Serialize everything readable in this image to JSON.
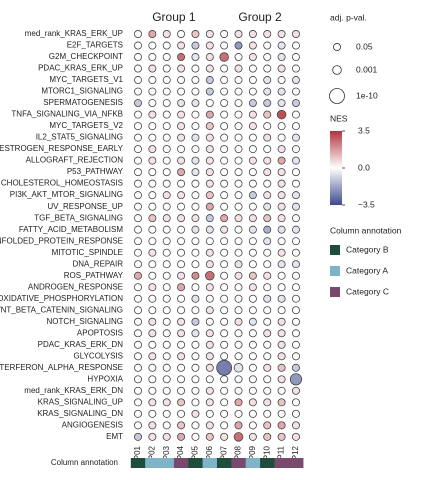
{
  "chart_data": {
    "type": "dotplot",
    "columns": [
      "P01",
      "P02",
      "P03",
      "P04",
      "P05",
      "P06",
      "P07",
      "P08",
      "P09",
      "P10",
      "P11",
      "P12"
    ],
    "groups": [
      {
        "name": "Group 1",
        "columns": 6
      },
      {
        "name": "Group 2",
        "columns": 6
      }
    ],
    "color_low": "#3e4a8e",
    "color_mid": "#ffffff",
    "color_high": "#b2343f",
    "clim": [
      -3.5,
      3.5
    ],
    "rows": [
      {
        "name": "med_rank_KRAS_ERK_UP",
        "nes": [
          0,
          1.5,
          0.5,
          0,
          1,
          0.5,
          0,
          0.5,
          0.5,
          0.5,
          0.5,
          0.5
        ],
        "padj": [
          0.05,
          0.05,
          0.05,
          0.05,
          0.05,
          0.05,
          0.05,
          0.05,
          0.05,
          0.05,
          0.05,
          0.05
        ]
      },
      {
        "name": "E2F_TARGETS",
        "nes": [
          0,
          0,
          0,
          0.5,
          -1,
          0.5,
          0,
          -2,
          0.5,
          0,
          -0.5,
          0
        ],
        "padj": [
          0.05,
          0.05,
          0.05,
          0.05,
          0.05,
          0.05,
          0.05,
          0.05,
          0.05,
          0.05,
          0.05,
          0.05
        ]
      },
      {
        "name": "G2M_CHECKPOINT",
        "nes": [
          0,
          0,
          0,
          2.5,
          -0.5,
          0.5,
          2.5,
          0,
          0.5,
          0,
          -0.5,
          0
        ],
        "padj": [
          0.05,
          0.05,
          0.05,
          0.05,
          0.05,
          0.05,
          0.001,
          0.05,
          0.05,
          0.05,
          0.05,
          0.05
        ]
      },
      {
        "name": "PDAC_KRAS_ERK_UP",
        "nes": [
          0,
          0.5,
          0,
          0.5,
          0,
          0.5,
          0,
          0.5,
          0,
          0,
          0.5,
          0
        ],
        "padj": [
          0.05,
          0.05,
          0.05,
          0.05,
          0.05,
          0.05,
          0.05,
          0.05,
          0.05,
          0.05,
          0.05,
          0.05
        ]
      },
      {
        "name": "MYC_TARGETS_V1",
        "nes": [
          0,
          0,
          0,
          0,
          0,
          -1,
          0,
          0,
          0,
          -0.5,
          0,
          -0.5
        ],
        "padj": [
          0.05,
          0.05,
          0.05,
          0.05,
          0.05,
          0.05,
          0.05,
          0.05,
          0.05,
          0.05,
          0.05,
          0.05
        ]
      },
      {
        "name": "MTORC1_SIGNALING",
        "nes": [
          0,
          0,
          0,
          0,
          0,
          -1,
          0,
          0,
          0,
          -0.5,
          -0.5,
          0
        ],
        "padj": [
          0.05,
          0.05,
          0.05,
          0.05,
          0.05,
          0.05,
          0.05,
          0.05,
          0.05,
          0.05,
          0.05,
          0.05
        ]
      },
      {
        "name": "SPERMATOGENESIS",
        "nes": [
          -1,
          0,
          0,
          -0.5,
          -0.5,
          0,
          0,
          0,
          -1,
          -1,
          -0.5,
          -1
        ],
        "padj": [
          0.05,
          0.05,
          0.05,
          0.05,
          0.05,
          0.05,
          0.05,
          0.05,
          0.05,
          0.05,
          0.05,
          0.05
        ]
      },
      {
        "name": "TNFA_SIGNALING_VIA_NFKB",
        "nes": [
          0,
          0.5,
          0,
          0.5,
          0,
          1.5,
          0,
          0,
          0.5,
          1,
          3,
          0
        ],
        "padj": [
          0.05,
          0.05,
          0.05,
          0.05,
          0.05,
          0.05,
          0.05,
          0.05,
          0.05,
          0.05,
          0.001,
          0.05
        ]
      },
      {
        "name": "MYC_TARGETS_V2",
        "nes": [
          0,
          0,
          0,
          0.5,
          0,
          1,
          0,
          0,
          0.5,
          0,
          0,
          0
        ],
        "padj": [
          0.05,
          0.05,
          0.05,
          0.05,
          0.05,
          0.05,
          0.05,
          0.05,
          0.05,
          0.05,
          0.05,
          0.05
        ]
      },
      {
        "name": "IL2_STAT5_SIGNALING",
        "nes": [
          0,
          0,
          0,
          0.5,
          -0.5,
          0.5,
          0,
          0,
          0,
          0.5,
          0,
          -0.5
        ],
        "padj": [
          0.05,
          0.05,
          0.05,
          0.05,
          0.05,
          0.05,
          0.05,
          0.05,
          0.05,
          0.05,
          0.05,
          0.05
        ]
      },
      {
        "name": "ESTROGEN_RESPONSE_EARLY",
        "nes": [
          0,
          0.5,
          0,
          0,
          0,
          0.5,
          0,
          0,
          0,
          0,
          0.5,
          0
        ],
        "padj": [
          0.05,
          0.05,
          0.05,
          0.05,
          0.05,
          0.05,
          0.05,
          0.05,
          0.05,
          0.05,
          0.05,
          0.05
        ]
      },
      {
        "name": "ALLOGRAFT_REJECTION",
        "nes": [
          0,
          0.5,
          0,
          0.5,
          -0.5,
          0.5,
          0,
          0,
          0.5,
          0.5,
          1.5,
          -0.5
        ],
        "padj": [
          0.05,
          0.05,
          0.05,
          0.05,
          0.05,
          0.05,
          0.05,
          0.05,
          0.05,
          0.05,
          0.05,
          0.05
        ]
      },
      {
        "name": "P53_PATHWAY",
        "nes": [
          0,
          0,
          0,
          1.5,
          -0.5,
          0.5,
          0,
          0,
          0,
          0.5,
          0.5,
          0
        ],
        "padj": [
          0.05,
          0.05,
          0.05,
          0.05,
          0.05,
          0.05,
          0.05,
          0.05,
          0.05,
          0.05,
          0.05,
          0.05
        ]
      },
      {
        "name": "CHOLESTEROL_HOMEOSTASIS",
        "nes": [
          0,
          0,
          0,
          0,
          0,
          0.5,
          0,
          0,
          0,
          0,
          0.5,
          0
        ],
        "padj": [
          0.05,
          0.05,
          0.05,
          0.05,
          0.05,
          0.05,
          0.05,
          0.05,
          0.05,
          0.05,
          0.05,
          0.05
        ]
      },
      {
        "name": "PI3K_AKT_MTOR_SIGNALING",
        "nes": [
          0,
          0,
          0.5,
          0.5,
          0,
          1,
          0,
          0,
          -1,
          0.5,
          0.5,
          -0.5
        ],
        "padj": [
          0.05,
          0.05,
          0.05,
          0.05,
          0.05,
          0.05,
          0.05,
          0.05,
          0.05,
          0.05,
          0.05,
          0.05
        ]
      },
      {
        "name": "UV_RESPONSE_UP",
        "nes": [
          0,
          0,
          0,
          0,
          0,
          1.5,
          0,
          0,
          0,
          -0.5,
          0.5,
          -0.5
        ],
        "padj": [
          0.05,
          0.05,
          0.05,
          0.05,
          0.05,
          0.05,
          0.05,
          0.05,
          0.05,
          0.05,
          0.05,
          0.05
        ]
      },
      {
        "name": "TGF_BETA_SIGNALING",
        "nes": [
          0,
          1,
          0.5,
          0.5,
          0.5,
          -1,
          1.5,
          0.5,
          0.5,
          1,
          0.5,
          0
        ],
        "padj": [
          0.05,
          0.05,
          0.05,
          0.05,
          0.05,
          0.05,
          0.05,
          0.05,
          0.05,
          0.05,
          0.05,
          0.05
        ]
      },
      {
        "name": "FATTY_ACID_METABOLISM",
        "nes": [
          0,
          0,
          0,
          0,
          -0.5,
          -0.5,
          0.5,
          0,
          -0.5,
          -1.5,
          -0.5,
          -0.5
        ],
        "padj": [
          0.05,
          0.05,
          0.05,
          0.05,
          0.05,
          0.05,
          0.05,
          0.05,
          0.05,
          0.05,
          0.05,
          0.05
        ]
      },
      {
        "name": "UNFOLDED_PROTEIN_RESPONSE",
        "nes": [
          0,
          0,
          0,
          0,
          0,
          0,
          0,
          0,
          0,
          -0.5,
          0,
          0
        ],
        "padj": [
          0.05,
          0.05,
          0.05,
          0.05,
          0.05,
          0.05,
          0.05,
          0.05,
          0.05,
          0.05,
          0.05,
          0.05
        ]
      },
      {
        "name": "MITOTIC_SPINDLE",
        "nes": [
          0,
          0.5,
          0,
          0,
          0,
          0.5,
          0,
          0,
          0,
          0,
          0.5,
          0
        ],
        "padj": [
          0.05,
          0.05,
          0.05,
          0.05,
          0.05,
          0.05,
          0.05,
          0.05,
          0.05,
          0.05,
          0.05,
          0.05
        ]
      },
      {
        "name": "DNA_REPAIR",
        "nes": [
          0,
          0,
          0,
          0,
          0,
          0.5,
          0,
          -0.5,
          0,
          0,
          -0.5,
          -0.5
        ],
        "padj": [
          0.05,
          0.05,
          0.05,
          0.05,
          0.05,
          0.05,
          0.05,
          0.05,
          0.05,
          0.05,
          0.05,
          0.05
        ]
      },
      {
        "name": "ROS_PATHWAY",
        "nes": [
          1.5,
          0,
          0,
          0.5,
          2,
          2.5,
          0,
          0.5,
          1,
          0.5,
          0,
          0
        ],
        "padj": [
          0.05,
          0.05,
          0.05,
          0.05,
          0.05,
          0.001,
          0.05,
          0.05,
          0.05,
          0.05,
          0.05,
          0.05
        ]
      },
      {
        "name": "ANDROGEN_RESPONSE",
        "nes": [
          0,
          0.5,
          0,
          1.5,
          0,
          0.5,
          0,
          0,
          0.5,
          0,
          0,
          0
        ],
        "padj": [
          0.05,
          0.05,
          0.05,
          0.05,
          0.05,
          0.05,
          0.05,
          0.05,
          0.05,
          0.05,
          0.05,
          0.05
        ]
      },
      {
        "name": "OXIDATIVE_PHOSPHORYLATION",
        "nes": [
          0,
          0,
          0,
          0,
          -0.5,
          0,
          0,
          0,
          0,
          -0.5,
          -0.5,
          0
        ],
        "padj": [
          0.05,
          0.05,
          0.05,
          0.05,
          0.05,
          0.05,
          0.05,
          0.05,
          0.05,
          0.05,
          0.05,
          0.05
        ]
      },
      {
        "name": "WNT_BETA_CATENIN_SIGNALING",
        "nes": [
          0,
          0,
          0,
          0,
          0,
          0.5,
          0,
          0,
          0,
          0,
          0,
          0
        ],
        "padj": [
          0.05,
          0.05,
          0.05,
          0.05,
          0.05,
          0.05,
          0.05,
          0.05,
          0.05,
          0.05,
          0.05,
          0.05
        ]
      },
      {
        "name": "NOTCH_SIGNALING",
        "nes": [
          0,
          0.5,
          0,
          0.5,
          -1,
          0,
          0,
          0.5,
          -0.5,
          0,
          0.5,
          0
        ],
        "padj": [
          0.05,
          0.05,
          0.05,
          0.05,
          0.05,
          0.05,
          0.05,
          0.05,
          0.05,
          0.05,
          0.05,
          0.05
        ]
      },
      {
        "name": "APOPTOSIS",
        "nes": [
          0,
          0.5,
          0,
          0.5,
          -0.5,
          0.5,
          0,
          0,
          0,
          0.5,
          0.5,
          0
        ],
        "padj": [
          0.05,
          0.05,
          0.05,
          0.05,
          0.05,
          0.05,
          0.05,
          0.05,
          0.05,
          0.05,
          0.05,
          0.05
        ]
      },
      {
        "name": "PDAC_KRAS_ERK_DN",
        "nes": [
          0,
          0,
          0,
          0,
          0,
          0.5,
          0,
          0,
          0,
          0,
          0.5,
          0
        ],
        "padj": [
          0.05,
          0.05,
          0.05,
          0.05,
          0.05,
          0.05,
          0.05,
          0.05,
          0.05,
          0.05,
          0.05,
          0.05
        ]
      },
      {
        "name": "GLYCOLYSIS",
        "nes": [
          0,
          0.5,
          0,
          0.5,
          0,
          0.5,
          0,
          0,
          0,
          0,
          0.5,
          0
        ],
        "padj": [
          0.05,
          0.05,
          0.05,
          0.05,
          0.05,
          0.05,
          0.05,
          0.05,
          0.05,
          0.05,
          0.05,
          0.05
        ]
      },
      {
        "name": "INTERFERON_ALPHA_RESPONSE",
        "nes": [
          0,
          0,
          0,
          0,
          0,
          0.5,
          -2.5,
          -0.5,
          0,
          0.5,
          1,
          -1
        ],
        "padj": [
          0.05,
          0.05,
          0.05,
          0.05,
          0.05,
          0.05,
          1e-10,
          0.001,
          0.05,
          0.05,
          0.05,
          0.05
        ]
      },
      {
        "name": "HYPOXIA",
        "nes": [
          0,
          0,
          0,
          0,
          0,
          0,
          0,
          0,
          0,
          0,
          0.5,
          -2
        ],
        "padj": [
          0.05,
          0.05,
          0.05,
          0.05,
          0.05,
          0.05,
          0.05,
          0.05,
          0.05,
          0.05,
          0.05,
          1e-06
        ]
      },
      {
        "name": "med_rank_KRAS_ERK_DN",
        "nes": [
          0,
          0,
          0,
          0,
          0,
          0.5,
          0,
          0,
          0,
          0,
          0,
          0.5
        ],
        "padj": [
          0.05,
          0.05,
          0.05,
          0.05,
          0.05,
          0.05,
          0.05,
          0.05,
          0.05,
          0.05,
          0.05,
          0.05
        ]
      },
      {
        "name": "KRAS_SIGNALING_UP",
        "nes": [
          0,
          0.5,
          0.5,
          1,
          0,
          0.5,
          0,
          1.5,
          0.5,
          0.5,
          1,
          0
        ],
        "padj": [
          0.05,
          0.05,
          0.05,
          0.05,
          0.05,
          0.05,
          0.05,
          0.05,
          0.05,
          0.05,
          0.05,
          0.05
        ]
      },
      {
        "name": "KRAS_SIGNALING_DN",
        "nes": [
          0,
          0,
          0,
          0,
          0.5,
          0,
          0,
          0,
          0,
          0,
          0,
          0
        ],
        "padj": [
          0.05,
          0.05,
          0.05,
          0.05,
          0.05,
          0.05,
          0.05,
          0.05,
          0.05,
          0.05,
          0.05,
          0.05
        ]
      },
      {
        "name": "ANGIOGENESIS",
        "nes": [
          0,
          0.5,
          0,
          1,
          0,
          0.5,
          0,
          1.5,
          0,
          1,
          1.5,
          0.5
        ],
        "padj": [
          0.05,
          0.05,
          0.05,
          0.05,
          0.05,
          0.05,
          0.05,
          0.05,
          0.05,
          0.05,
          0.05,
          0.05
        ]
      },
      {
        "name": "EMT",
        "nes": [
          -1,
          0.5,
          0.5,
          1.5,
          0,
          1,
          0.5,
          2.5,
          0.5,
          1,
          1,
          0.5
        ],
        "padj": [
          0.05,
          0.05,
          0.05,
          0.05,
          0.05,
          0.05,
          0.05,
          0.001,
          0.05,
          0.05,
          0.05,
          0.05
        ]
      }
    ],
    "size_legend": {
      "title": "adj. p-val.",
      "values": [
        0.05,
        0.001,
        1e-10
      ]
    },
    "color_legend": {
      "title": "NES",
      "ticks": [
        3.5,
        {
          "value": 0,
          "label": "0.0"
        },
        {
          "value": -3.5,
          "label": "−3.5"
        }
      ]
    },
    "annotation": {
      "title": "Column annotation",
      "row_label": "Column annotation",
      "categories": [
        {
          "name": "Category B",
          "color": "#1f4d3c"
        },
        {
          "name": "Category A",
          "color": "#7fb3c8"
        },
        {
          "name": "Category C",
          "color": "#7a4a6e"
        }
      ],
      "values": [
        0,
        1,
        1,
        2,
        0,
        1,
        0,
        2,
        1,
        0,
        2,
        2
      ]
    }
  }
}
